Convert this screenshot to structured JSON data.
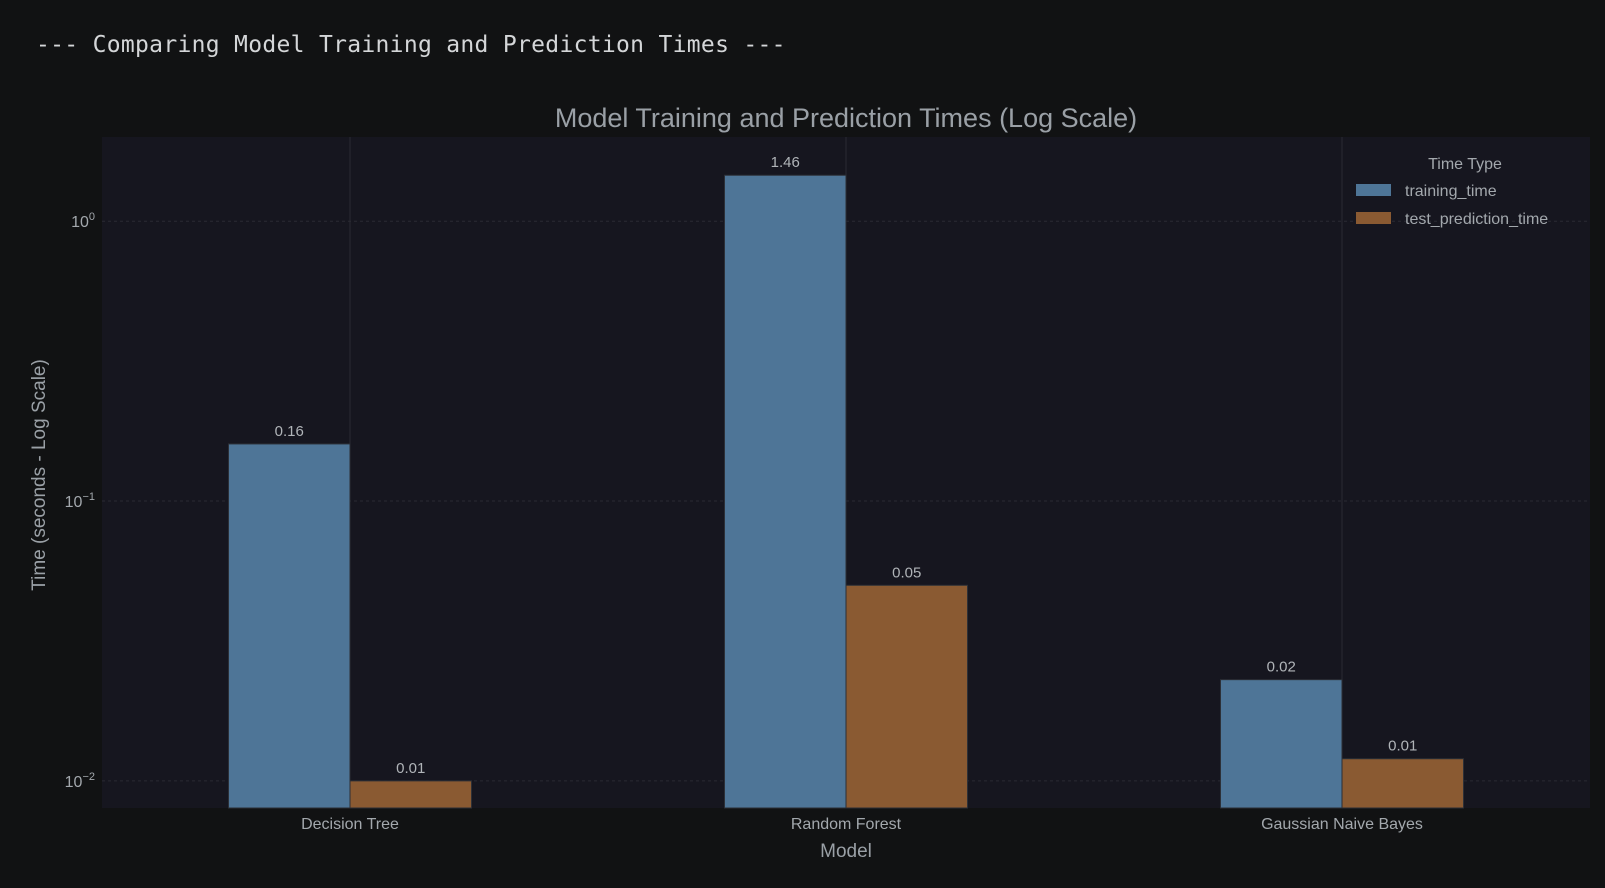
{
  "console": {
    "header_text": "--- Comparing Model Training and Prediction Times ---"
  },
  "chart_data": {
    "type": "bar",
    "title": "Model Training and Prediction Times (Log Scale)",
    "xlabel": "Model",
    "ylabel": "Time (seconds - Log Scale)",
    "yscale": "log",
    "ylim": [
      0.008,
      2.0
    ],
    "yticks": [
      {
        "value": 1,
        "base": "10",
        "exp": "0"
      },
      {
        "value": 0.1,
        "base": "10",
        "exp": "−1"
      },
      {
        "value": 0.01,
        "base": "10",
        "exp": "−2"
      }
    ],
    "categories": [
      "Decision Tree",
      "Random Forest",
      "Gaussian Naive Bayes"
    ],
    "series": [
      {
        "name": "training_time",
        "color": "#4e7597",
        "values": [
          0.16,
          1.46,
          0.023
        ],
        "labels": [
          "0.16",
          "1.46",
          "0.02"
        ]
      },
      {
        "name": "test_prediction_time",
        "color": "#8a5a32",
        "values": [
          0.01,
          0.05,
          0.012
        ],
        "labels": [
          "0.01",
          "0.05",
          "0.01"
        ]
      }
    ],
    "legend": {
      "title": "Time Type",
      "position": "top-right"
    },
    "grid": true,
    "colors": {
      "plot_bg": "#16161f",
      "figure_bg": "#111213",
      "grid": "#2a2a33"
    }
  }
}
